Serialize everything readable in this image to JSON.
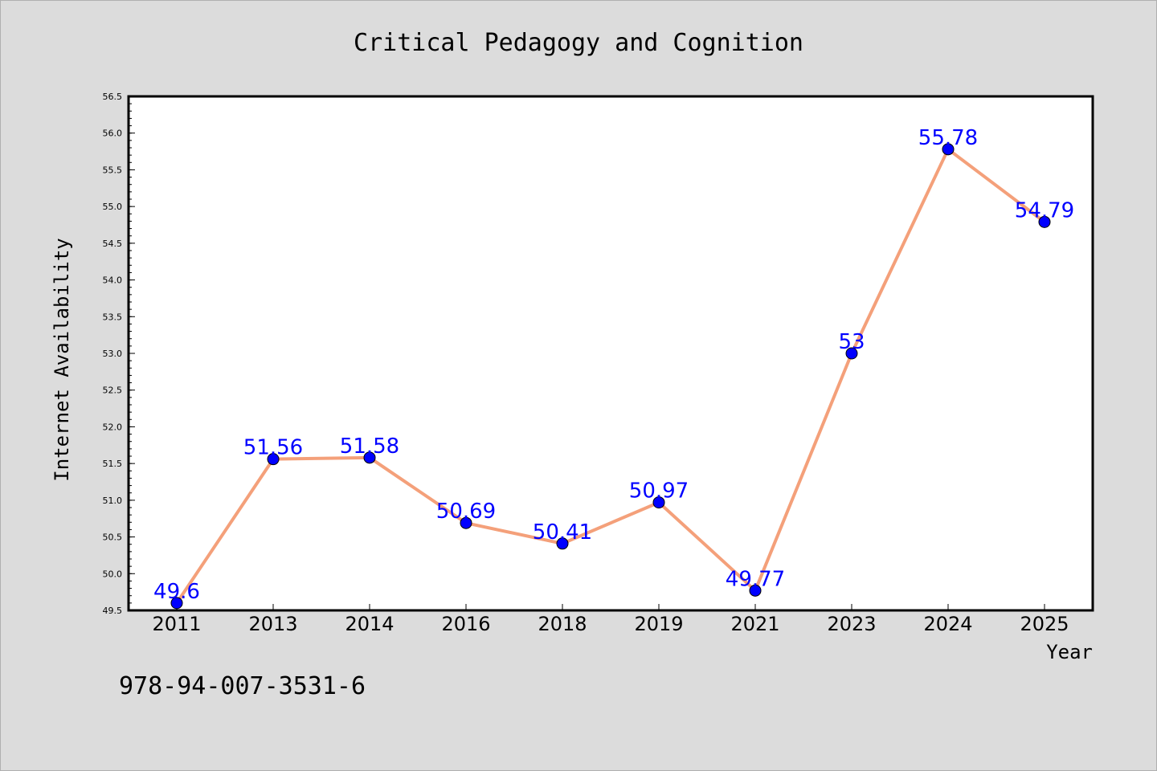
{
  "chart_data": {
    "type": "line",
    "title": "Critical Pedagogy and Cognition",
    "xlabel": "Year",
    "ylabel": "Internet Availability",
    "categories": [
      "2011",
      "2013",
      "2014",
      "2016",
      "2018",
      "2019",
      "2021",
      "2023",
      "2024",
      "2025"
    ],
    "series": [
      {
        "values": [
          49.6,
          51.56,
          51.58,
          50.69,
          50.41,
          50.97,
          49.77,
          53,
          55.78,
          54.79
        ],
        "data_labels": [
          "49.6",
          "51.56",
          "51.58",
          "50.69",
          "50.41",
          "50.97",
          "49.77",
          "53",
          "55.78",
          "54.79"
        ],
        "line_color": "#f4a07a",
        "marker_color": "#0000ff",
        "label_color": "#0000ff"
      }
    ],
    "ylim": [
      49.5,
      56.5
    ],
    "y_ticks": [
      "49.5",
      "50.0",
      "50.5",
      "51.0",
      "51.5",
      "52.0",
      "52.5",
      "53.0",
      "53.5",
      "54.0",
      "54.5",
      "55.0",
      "55.5",
      "56.0",
      "56.5"
    ],
    "grid": false,
    "legend": "none"
  },
  "footer_text": "978-94-007-3531-6",
  "colors": {
    "background": "#dcdcdc",
    "plot_background": "#ffffff",
    "axis": "#000000"
  }
}
